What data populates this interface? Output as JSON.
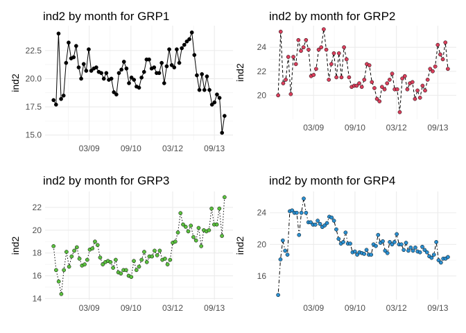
{
  "chart_data": [
    {
      "type": "line",
      "title": "ind2 by month for GRP1",
      "xlabel": "",
      "ylabel": "ind2",
      "x_tick_labels": [
        "03/09",
        "09/10",
        "03/12",
        "09/13"
      ],
      "y_ticks": [
        15.0,
        17.5,
        20.0,
        22.5
      ],
      "y_tick_labels": [
        "15.0",
        "17.5",
        "20.0",
        "22.5"
      ],
      "ylim": [
        14.55,
        24.7
      ],
      "grid": true,
      "line_style": "solid",
      "point_color": "#000000",
      "series": [
        {
          "values": [
            18.1,
            17.7,
            24.0,
            18.2,
            18.5,
            21.4,
            23.2,
            21.8,
            21.9,
            22.9,
            21.0,
            20.0,
            21.3,
            20.7,
            22.6,
            20.7,
            20.9,
            21.0,
            20.6,
            20.5,
            20.0,
            20.5,
            19.9,
            20.0,
            18.8,
            18.6,
            20.5,
            20.8,
            21.5,
            20.9,
            19.6,
            20.1,
            19.9,
            19.3,
            19.2,
            20.1,
            20.6,
            21.7,
            21.7,
            20.9,
            21.0,
            20.5,
            20.5,
            21.4,
            19.6,
            21.1,
            22.6,
            21.2,
            21.0,
            22.6,
            21.4,
            22.7,
            23.0,
            23.3,
            23.5,
            24.1,
            22.1,
            20.3,
            19.0,
            20.4,
            19.0,
            20.2,
            19.0,
            17.7,
            17.9,
            18.6,
            18.3,
            15.2,
            16.7
          ]
        }
      ]
    },
    {
      "type": "line",
      "title": "ind2 by month for GRP2",
      "xlabel": "",
      "ylabel": "ind2",
      "x_tick_labels": [
        "03/09",
        "09/10",
        "03/12",
        "09/13"
      ],
      "y_ticks": [
        20,
        22,
        24
      ],
      "y_tick_labels": [
        "20",
        "22",
        "24"
      ],
      "ylim": [
        18.0,
        25.8
      ],
      "grid": true,
      "line_style": "dashed",
      "point_color": "#d93f5c",
      "series": [
        {
          "values": [
            20.0,
            25.3,
            21.0,
            21.3,
            23.2,
            20.1,
            23.2,
            22.6,
            24.6,
            23.7,
            24.0,
            24.6,
            23.8,
            21.6,
            21.7,
            22.2,
            23.8,
            24.0,
            25.5,
            23.8,
            21.3,
            22.6,
            23.5,
            21.5,
            23.5,
            21.5,
            24.0,
            23.0,
            21.5,
            20.7,
            20.8,
            20.8,
            21.0,
            20.7,
            21.3,
            22.6,
            22.5,
            21.1,
            20.6,
            19.7,
            19.5,
            20.7,
            20.5,
            21.0,
            21.3,
            21.8,
            20.5,
            20.5,
            18.6,
            21.4,
            21.6,
            20.5,
            21.0,
            21.1,
            19.7,
            20.4,
            19.8,
            20.8,
            20.4,
            21.3,
            22.2,
            22.0,
            22.4,
            24.2,
            23.4,
            23.0,
            24.4,
            22.2
          ]
        }
      ]
    },
    {
      "type": "line",
      "title": "ind2 by month for GRP3",
      "xlabel": "",
      "ylabel": "ind2",
      "x_tick_labels": [
        "03/09",
        "09/10",
        "03/12",
        "09/13"
      ],
      "y_ticks": [
        14,
        16,
        18,
        20,
        22
      ],
      "y_tick_labels": [
        "14",
        "16",
        "18",
        "20",
        "22"
      ],
      "ylim": [
        13.9,
        23.4
      ],
      "grid": true,
      "line_style": "dotted",
      "point_color": "#5bbf3f",
      "series": [
        {
          "values": [
            18.6,
            16.5,
            15.5,
            14.4,
            16.5,
            18.1,
            16.8,
            17.7,
            18.2,
            18.5,
            17.5,
            16.9,
            17.0,
            17.4,
            18.3,
            18.4,
            19.0,
            18.7,
            17.6,
            17.0,
            17.2,
            17.3,
            17.2,
            16.7,
            17.4,
            16.3,
            16.2,
            16.5,
            16.5,
            16.0,
            15.9,
            17.3,
            16.5,
            16.8,
            17.4,
            18.1,
            17.2,
            17.7,
            17.7,
            18.2,
            17.8,
            18.2,
            17.4,
            17.5,
            17.0,
            17.4,
            18.9,
            19.0,
            19.8,
            21.5,
            20.5,
            20.3,
            19.9,
            20.4,
            19.4,
            19.1,
            20.2,
            18.6,
            20.0,
            19.9,
            20.0,
            21.9,
            20.5,
            20.5,
            21.9,
            19.5,
            22.9
          ]
        }
      ]
    },
    {
      "type": "line",
      "title": "ind2 by month for GRP4",
      "xlabel": "",
      "ylabel": "ind2",
      "x_tick_labels": [
        "03/09",
        "09/10",
        "03/12",
        "09/13"
      ],
      "y_ticks": [
        16,
        20,
        24
      ],
      "y_tick_labels": [
        "16",
        "20",
        "24"
      ],
      "ylim": [
        13.0,
        26.7
      ],
      "grid": true,
      "line_style": "dotdash",
      "point_color": "#2b8fd0",
      "series": [
        {
          "values": [
            13.6,
            18.1,
            20.5,
            19.2,
            18.7,
            24.2,
            24.3,
            24.0,
            24.0,
            21.2,
            24.0,
            25.8,
            24.0,
            22.8,
            22.8,
            22.5,
            22.5,
            23.0,
            22.6,
            22.2,
            22.4,
            22.7,
            23.5,
            23.4,
            23.0,
            21.9,
            20.7,
            20.1,
            20.3,
            21.5,
            20.1,
            20.1,
            19.0,
            19.1,
            18.7,
            19.0,
            18.9,
            18.8,
            19.3,
            18.7,
            18.7,
            20.0,
            19.8,
            21.2,
            20.2,
            20.4,
            19.2,
            18.9,
            20.3,
            20.0,
            20.3,
            21.3,
            20.0,
            20.0,
            19.3,
            20.2,
            19.2,
            19.6,
            19.2,
            19.6,
            19.1,
            19.0,
            19.7,
            19.3,
            19.0,
            18.5,
            18.3,
            18.7,
            20.3,
            18.0,
            17.7,
            18.2,
            18.2,
            18.4
          ]
        }
      ]
    }
  ]
}
